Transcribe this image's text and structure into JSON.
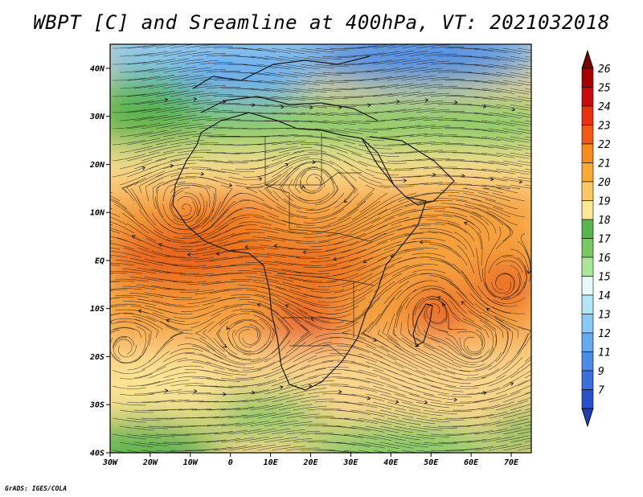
{
  "title": "WBPT [C] and Sreamline at 400hPa, VT: 2021032018",
  "credit": "GrADS: IGES/COLA",
  "map": {
    "lon_range": [
      -30,
      75
    ],
    "lat_range": [
      -40,
      45
    ],
    "lon_ticks": [
      {
        "value": -30,
        "label": "30W"
      },
      {
        "value": -20,
        "label": "20W"
      },
      {
        "value": -10,
        "label": "10W"
      },
      {
        "value": 0,
        "label": "0"
      },
      {
        "value": 10,
        "label": "10E"
      },
      {
        "value": 20,
        "label": "20E"
      },
      {
        "value": 30,
        "label": "30E"
      },
      {
        "value": 40,
        "label": "40E"
      },
      {
        "value": 50,
        "label": "50E"
      },
      {
        "value": 60,
        "label": "60E"
      },
      {
        "value": 70,
        "label": "70E"
      }
    ],
    "lat_ticks": [
      {
        "value": 40,
        "label": "40N"
      },
      {
        "value": 30,
        "label": "30N"
      },
      {
        "value": 20,
        "label": "20N"
      },
      {
        "value": 10,
        "label": "10N"
      },
      {
        "value": 0,
        "label": "EQ"
      },
      {
        "value": -10,
        "label": "10S"
      },
      {
        "value": -20,
        "label": "20S"
      },
      {
        "value": -30,
        "label": "30S"
      },
      {
        "value": -40,
        "label": "40S"
      }
    ]
  },
  "colorbar": {
    "levels": [
      "26",
      "25",
      "24",
      "23",
      "22",
      "21",
      "20",
      "19",
      "18",
      "17",
      "16",
      "15",
      "14",
      "13",
      "12",
      "11",
      "9",
      "7"
    ],
    "colors": [
      "#a50000",
      "#c80a0a",
      "#e6320f",
      "#f05a14",
      "#f58c1e",
      "#faaa32",
      "#fbc864",
      "#fde696",
      "#5ab450",
      "#78c864",
      "#aae696",
      "#e6fafa",
      "#b4e6fa",
      "#8cc8f5",
      "#64aaf0",
      "#4b8ce6",
      "#3c6edc",
      "#2850c8"
    ],
    "top_arrow_color": "#780000",
    "bottom_arrow_color": "#1e3cb4"
  }
}
